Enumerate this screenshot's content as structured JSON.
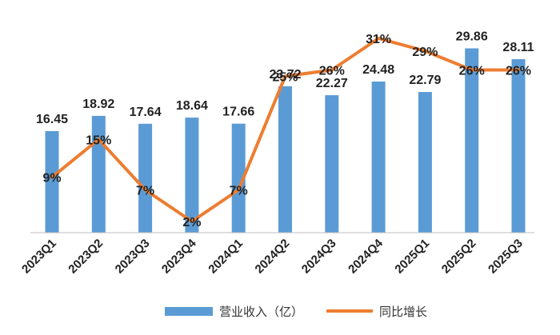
{
  "chart_data": {
    "type": "bar",
    "categories": [
      "2023Q1",
      "2023Q2",
      "2023Q3",
      "2023Q4",
      "2024Q1",
      "2024Q2",
      "2024Q3",
      "2024Q4",
      "2025Q1",
      "2025Q2",
      "2025Q3"
    ],
    "series": [
      {
        "name": "营业收入（亿）",
        "type": "bar",
        "values": [
          16.45,
          18.92,
          17.64,
          18.64,
          17.66,
          23.72,
          22.27,
          24.48,
          22.79,
          29.86,
          28.11
        ],
        "labels": [
          "16.45",
          "18.92",
          "17.64",
          "18.64",
          "17.66",
          "23.72",
          "22.27",
          "24.48",
          "22.79",
          "29.86",
          "28.11"
        ]
      },
      {
        "name": "同比增长",
        "type": "line",
        "values": [
          9,
          15,
          7,
          2,
          7,
          25,
          26,
          31,
          29,
          26,
          26
        ],
        "labels": [
          "9%",
          "15%",
          "7%",
          "2%",
          "7%",
          "25%",
          "26%",
          "31%",
          "29%",
          "26%",
          "26%"
        ]
      }
    ],
    "legend_position": "bottom",
    "grid": false,
    "colors": {
      "bar": "#5b9bd5",
      "line": "#ed7d31"
    }
  }
}
